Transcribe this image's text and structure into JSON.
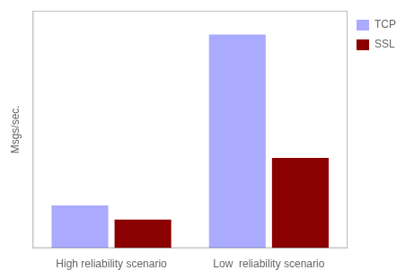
{
  "chart_data": {
    "type": "bar",
    "categories": [
      "High reliability scenario",
      "Low  reliability scenario"
    ],
    "series": [
      {
        "name": "TCP",
        "color": "#aaaaff",
        "values": [
          18,
          90
        ]
      },
      {
        "name": "SSL",
        "color": "#8b0000",
        "values": [
          12,
          38
        ]
      }
    ],
    "ylabel": "Msgs/sec.",
    "ylim": [
      0,
      100
    ],
    "yticks": [],
    "grid": false,
    "legend": "right",
    "tick_labels": "x"
  }
}
